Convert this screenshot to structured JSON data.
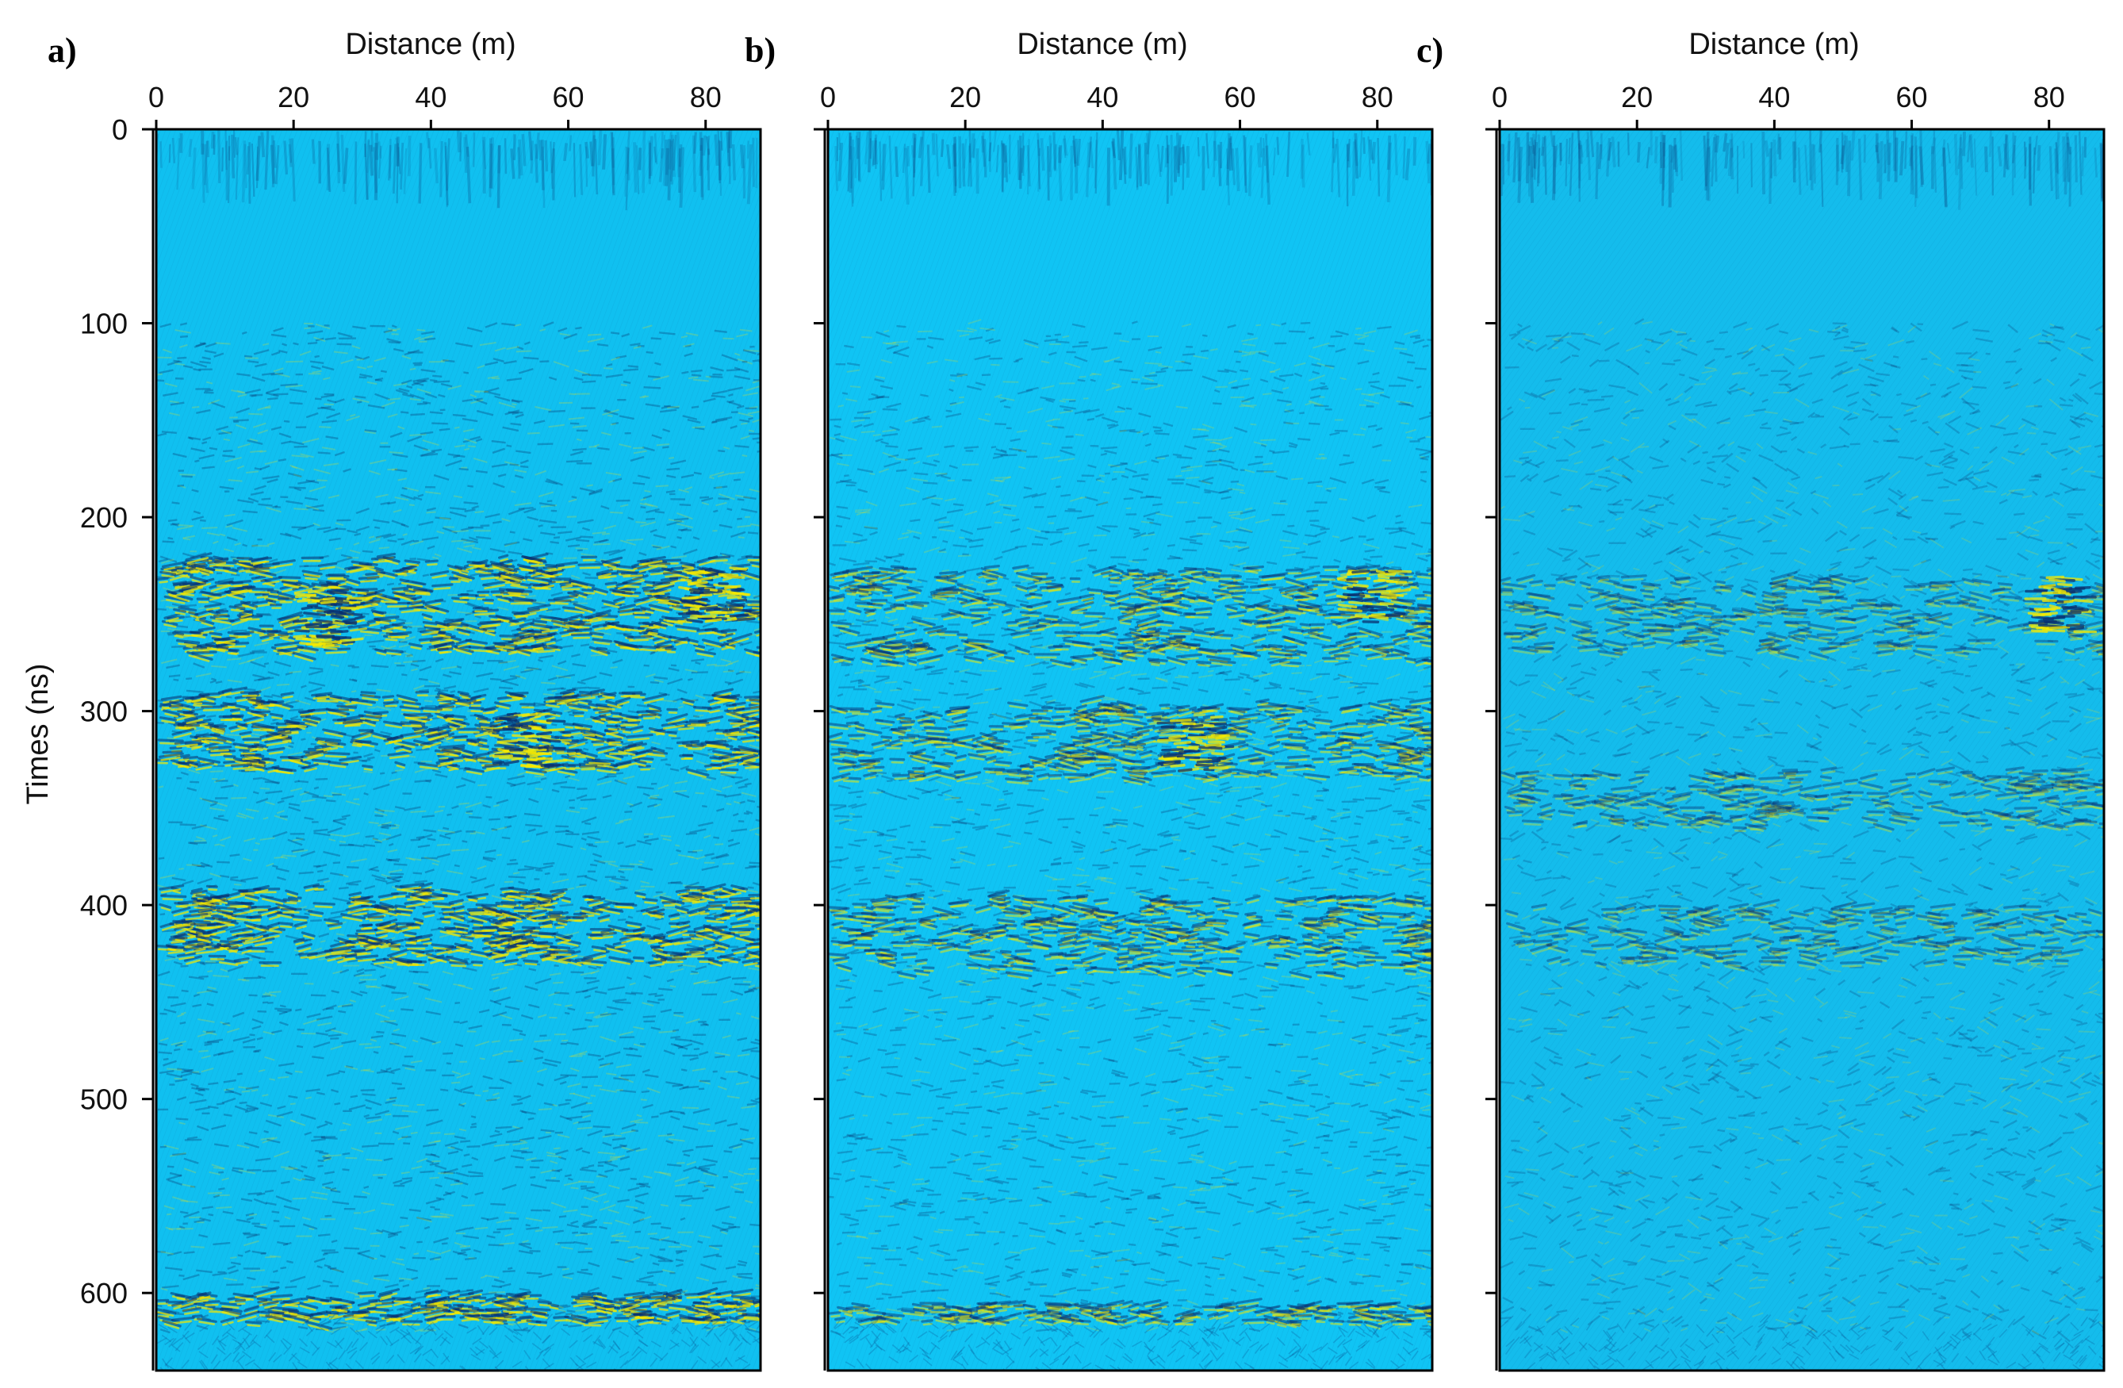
{
  "chart_data": [
    {
      "type": "heatmap",
      "panel_label": "a)",
      "xlabel": "Distance (m)",
      "ylabel": "Times (ns)",
      "xlim": [
        0,
        88
      ],
      "ylim": [
        0,
        640
      ],
      "x_ticks": [
        "0",
        "20",
        "40",
        "60",
        "80"
      ],
      "y_ticks": [
        "0",
        "100",
        "200",
        "300",
        "400",
        "500",
        "600"
      ],
      "x_axis_position": "top",
      "y_inverted": true,
      "colormap": [
        "#0a2f6e",
        "#12b4ec",
        "#f2e600"
      ],
      "background_color": "#10c0f0",
      "strong_reflection_bands_ns": [
        [
          220,
          270
        ],
        [
          290,
          330
        ],
        [
          390,
          430
        ],
        [
          600,
          615
        ]
      ],
      "amplitude_level": 1.0,
      "bright_spots": [
        {
          "distance": 53,
          "time": 315
        },
        {
          "distance": 24,
          "time": 252
        },
        {
          "distance": 80,
          "time": 240
        }
      ]
    },
    {
      "type": "heatmap",
      "panel_label": "b)",
      "xlabel": "Distance (m)",
      "ylabel": "",
      "xlim": [
        0,
        88
      ],
      "ylim": [
        0,
        640
      ],
      "x_ticks": [
        "0",
        "20",
        "40",
        "60",
        "80"
      ],
      "y_ticks": [
        "",
        "",
        "",
        "",
        "",
        "",
        ""
      ],
      "x_axis_position": "top",
      "y_inverted": true,
      "colormap": [
        "#0a2f6e",
        "#12b4ec",
        "#f2e600"
      ],
      "background_color": "#10c4f4",
      "strong_reflection_bands_ns": [
        [
          225,
          275
        ],
        [
          295,
          335
        ],
        [
          395,
          435
        ],
        [
          605,
          615
        ]
      ],
      "amplitude_level": 0.75,
      "bright_spots": [
        {
          "distance": 52,
          "time": 317
        },
        {
          "distance": 78,
          "time": 240
        }
      ]
    },
    {
      "type": "heatmap",
      "panel_label": "c)",
      "xlabel": "Distance (m)",
      "ylabel": "",
      "xlim": [
        0,
        88
      ],
      "ylim": [
        0,
        640
      ],
      "x_ticks": [
        "0",
        "20",
        "40",
        "60",
        "80"
      ],
      "y_ticks": [
        "",
        "",
        "",
        "",
        "",
        "",
        ""
      ],
      "x_axis_position": "top",
      "y_inverted": true,
      "colormap": [
        "#0a2f6e",
        "#12b4ec",
        "#f2e600"
      ],
      "background_color": "#14bcec",
      "strong_reflection_bands_ns": [
        [
          230,
          270
        ],
        [
          330,
          360
        ],
        [
          400,
          430
        ]
      ],
      "amplitude_level": 0.5,
      "bright_spots": [
        {
          "distance": 80,
          "time": 245
        }
      ]
    }
  ]
}
